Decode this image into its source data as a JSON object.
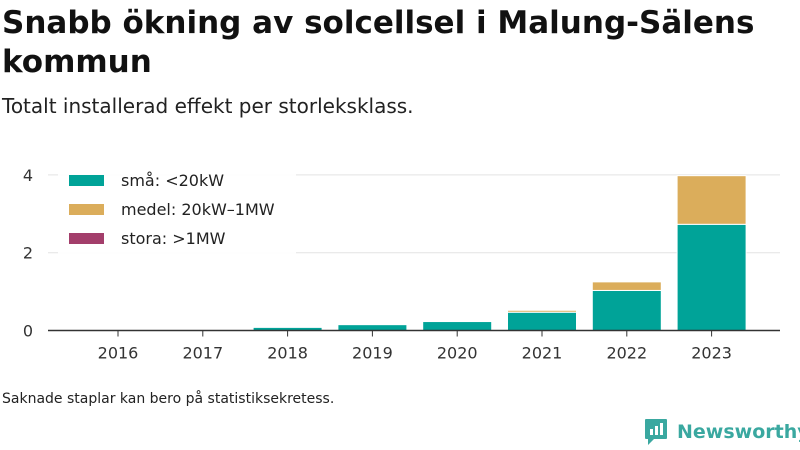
{
  "title": "Snabb ökning av solcellsel i Malung-Sälens kommun",
  "subtitle": "Totalt installerad effekt per storleksklass.",
  "footnote": "Saknade staplar kan bero på statistiksekretess.",
  "brand": {
    "name": "Newsworthy",
    "icon": "newsworthy-logo-icon",
    "color": "#3aa8a0"
  },
  "chart_data": {
    "type": "bar",
    "stacked": true,
    "categories": [
      "2016",
      "2017",
      "2018",
      "2019",
      "2020",
      "2021",
      "2022",
      "2023"
    ],
    "series": [
      {
        "name": "små: <20kW",
        "color": "#00a398",
        "values": [
          0,
          0,
          0.08,
          0.15,
          0.23,
          0.47,
          1.03,
          2.73
        ]
      },
      {
        "name": "medel: 20kW–1MW",
        "color": "#dbad5b",
        "values": [
          0,
          0,
          0,
          0,
          0,
          0.05,
          0.22,
          1.25
        ]
      },
      {
        "name": "stora: >1MW",
        "color": "#a33e6b",
        "values": [
          0,
          0,
          0,
          0,
          0,
          0,
          0,
          0
        ]
      }
    ],
    "yticks": [
      0,
      2,
      4
    ],
    "ylim": [
      0,
      4.1
    ],
    "grid": true,
    "legend_position": "top-left"
  }
}
